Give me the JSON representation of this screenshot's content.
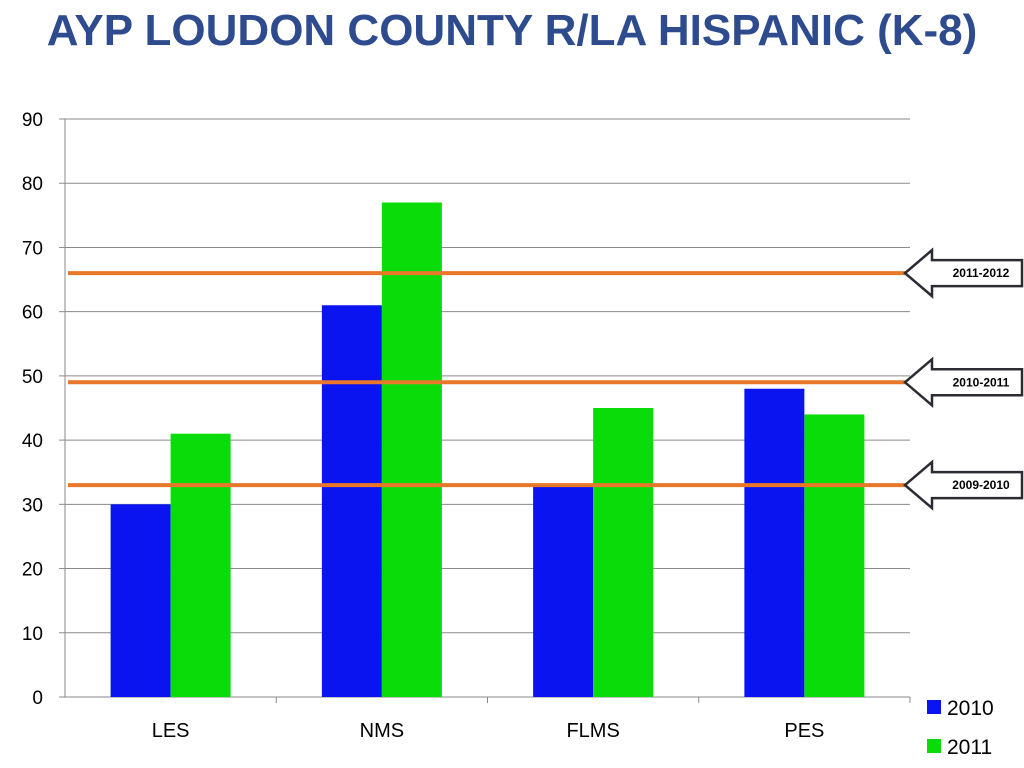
{
  "title": "AYP LOUDON COUNTY R/LA HISPANIC (K-8)",
  "colors": {
    "series_2010": "#0a14f0",
    "series_2011": "#0adc0a",
    "reference_line": "#e8772a",
    "title": "#2e4b8e"
  },
  "chart_data": {
    "type": "bar",
    "title": "AYP LOUDON COUNTY R/LA HISPANIC (K-8)",
    "categories": [
      "LES",
      "NMS",
      "FLMS",
      "PES"
    ],
    "series": [
      {
        "name": "2010",
        "values": [
          30,
          61,
          33,
          48
        ]
      },
      {
        "name": "2011",
        "values": [
          41,
          77,
          45,
          44
        ]
      }
    ],
    "ylim": [
      0,
      90
    ],
    "yticks": [
      0,
      10,
      20,
      30,
      40,
      50,
      60,
      70,
      80,
      90
    ],
    "grid": true,
    "legend": "bottom-right",
    "reference_lines": [
      {
        "label": "2011-2012",
        "value": 66
      },
      {
        "label": "2010-2011",
        "value": 49
      },
      {
        "label": "2009-2010",
        "value": 33
      }
    ]
  }
}
